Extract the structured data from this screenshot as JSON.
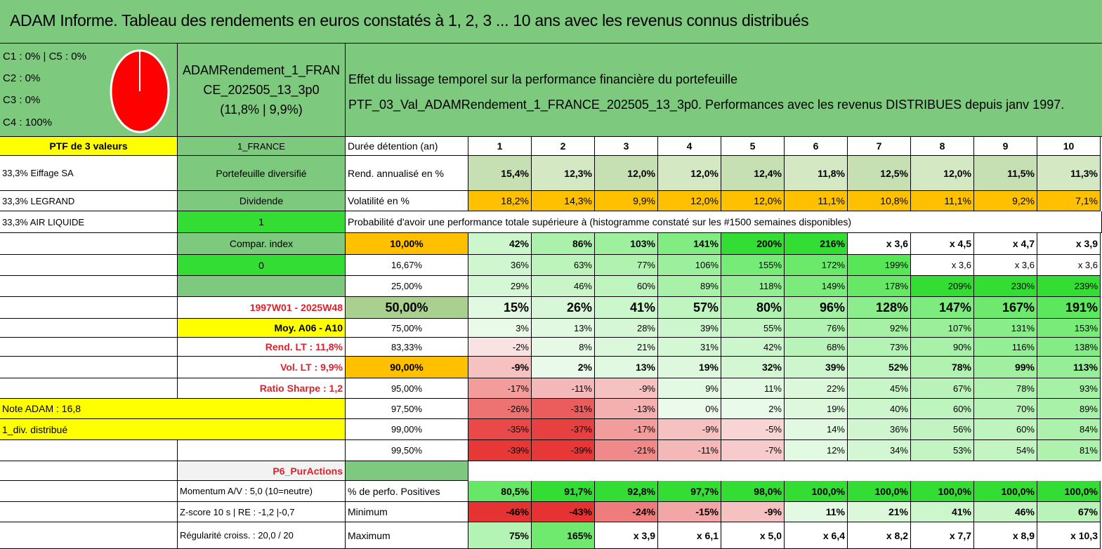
{
  "title": "ADAM Informe. Tableau des rendements en euros constatés à 1, 2, 3 ... 10 ans avec les revenus connus distribués",
  "legend": [
    "C1 : 0% | C5 : 0%",
    "C2 : 0%",
    "C3 : 0%",
    "C4 : 100%"
  ],
  "pie": {
    "color": "#ff0000",
    "c4_share": 100
  },
  "portfolio": {
    "name_line1": "ADAMRendement_1_FRAN",
    "name_line2": "CE_202505_13_3p0",
    "name_line3": "(11,8% | 9,9%)",
    "header_line1": "Effet du lissage temporel sur la performance financière du portefeuille",
    "header_line2": "PTF_03_Val_ADAMRendement_1_FRANCE_202505_13_3p0. Performances avec les revenus DISTRIBUES depuis janv 1997."
  },
  "left_col": {
    "ptf_label": "PTF de 3 valeurs",
    "holding1": "33,3% Eiffage SA",
    "holding2": "33,3% LEGRAND",
    "holding3": "33,3% AIR LIQUIDE"
  },
  "mid_col": {
    "market": "1_FRANCE",
    "diversification": "Portefeuille diversifié",
    "dividend_label": "Dividende",
    "dividend_value": "1",
    "compar_label": "Compar. index",
    "compar_value": "0",
    "period": "1997W01 - 2025W48",
    "moy": "Moy. A06 - A10",
    "rend_lt": "Rend. LT : 11,8%",
    "vol_lt": "Vol. LT : 9,9%",
    "sharpe": "Ratio Sharpe : 1,2",
    "p6": "P6_PurActions"
  },
  "left_notes": {
    "note_adam": "Note ADAM : 16,8",
    "div_distribue": "1_div. distribué",
    "momentum": "Momentum A/V : 5,0 (10=neutre)",
    "zscore": "Z-score 10 s | RE : -1,2 |-0,7",
    "regularite": "Régularité croiss. : 20,0 / 20"
  },
  "table": {
    "duree_label": "Durée détention (an)",
    "years": [
      "1",
      "2",
      "3",
      "4",
      "5",
      "6",
      "7",
      "8",
      "9",
      "10"
    ],
    "rend_label": "Rend. annualisé en %",
    "rend": [
      "15,4%",
      "12,3%",
      "12,0%",
      "12,0%",
      "12,4%",
      "11,8%",
      "12,5%",
      "12,0%",
      "11,5%",
      "11,3%"
    ],
    "vol_label": "Volatilité en %",
    "vol": [
      "18,2%",
      "14,3%",
      "9,9%",
      "12,0%",
      "12,0%",
      "11,1%",
      "10,8%",
      "11,1%",
      "9,2%",
      "7,1%"
    ],
    "prob_label": "Probabilité d'avoir une performance totale supérieure à (histogramme constaté sur les #1500 semaines disponibles)",
    "prob_rows": [
      {
        "p": "10,00%",
        "v": [
          "42%",
          "86%",
          "103%",
          "141%",
          "200%",
          "216%",
          "x 3,6",
          "x 4,5",
          "x 4,7",
          "x 3,9"
        ]
      },
      {
        "p": "16,67%",
        "v": [
          "36%",
          "63%",
          "77%",
          "106%",
          "155%",
          "172%",
          "199%",
          "x 3,6",
          "x 3,6",
          "x 3,6"
        ]
      },
      {
        "p": "25,00%",
        "v": [
          "29%",
          "46%",
          "60%",
          "89%",
          "118%",
          "149%",
          "178%",
          "209%",
          "230%",
          "239%"
        ]
      },
      {
        "p": "50,00%",
        "v": [
          "15%",
          "26%",
          "41%",
          "57%",
          "80%",
          "96%",
          "128%",
          "147%",
          "167%",
          "191%"
        ]
      },
      {
        "p": "75,00%",
        "v": [
          "3%",
          "13%",
          "28%",
          "39%",
          "55%",
          "76%",
          "92%",
          "107%",
          "131%",
          "153%"
        ]
      },
      {
        "p": "83,33%",
        "v": [
          "-2%",
          "8%",
          "21%",
          "31%",
          "42%",
          "68%",
          "73%",
          "90%",
          "116%",
          "138%"
        ]
      },
      {
        "p": "90,00%",
        "v": [
          "-9%",
          "2%",
          "13%",
          "19%",
          "32%",
          "39%",
          "52%",
          "78%",
          "99%",
          "113%"
        ]
      },
      {
        "p": "95,00%",
        "v": [
          "-17%",
          "-11%",
          "-9%",
          "9%",
          "11%",
          "22%",
          "45%",
          "67%",
          "78%",
          "93%"
        ]
      },
      {
        "p": "97,50%",
        "v": [
          "-26%",
          "-31%",
          "-13%",
          "0%",
          "2%",
          "19%",
          "40%",
          "60%",
          "70%",
          "89%"
        ]
      },
      {
        "p": "99,00%",
        "v": [
          "-35%",
          "-37%",
          "-17%",
          "-9%",
          "-5%",
          "14%",
          "36%",
          "56%",
          "60%",
          "84%"
        ]
      },
      {
        "p": "99,50%",
        "v": [
          "-39%",
          "-39%",
          "-21%",
          "-11%",
          "-7%",
          "12%",
          "34%",
          "53%",
          "54%",
          "81%"
        ]
      }
    ],
    "pos_label": "% de perfo. Positives",
    "pos": [
      "80,5%",
      "91,7%",
      "92,8%",
      "97,7%",
      "98,0%",
      "100,0%",
      "100,0%",
      "100,0%",
      "100,0%",
      "100,0%"
    ],
    "min_label": "Minimum",
    "min": [
      "-46%",
      "-43%",
      "-24%",
      "-15%",
      "-9%",
      "11%",
      "21%",
      "41%",
      "46%",
      "67%"
    ],
    "max_label": "Maximum",
    "max": [
      "75%",
      "165%",
      "x 3,9",
      "x 6,1",
      "x 5,0",
      "x 6,4",
      "x 8,2",
      "x 7,7",
      "x 8,9",
      "x 10,3"
    ]
  },
  "colors": {
    "title_green": "#7dc97d",
    "light_green": "#a9d08e",
    "bright_green": "#33dd33",
    "yellow": "#ffff00",
    "orange": "#ffc000",
    "red_text": "#e0202a"
  }
}
